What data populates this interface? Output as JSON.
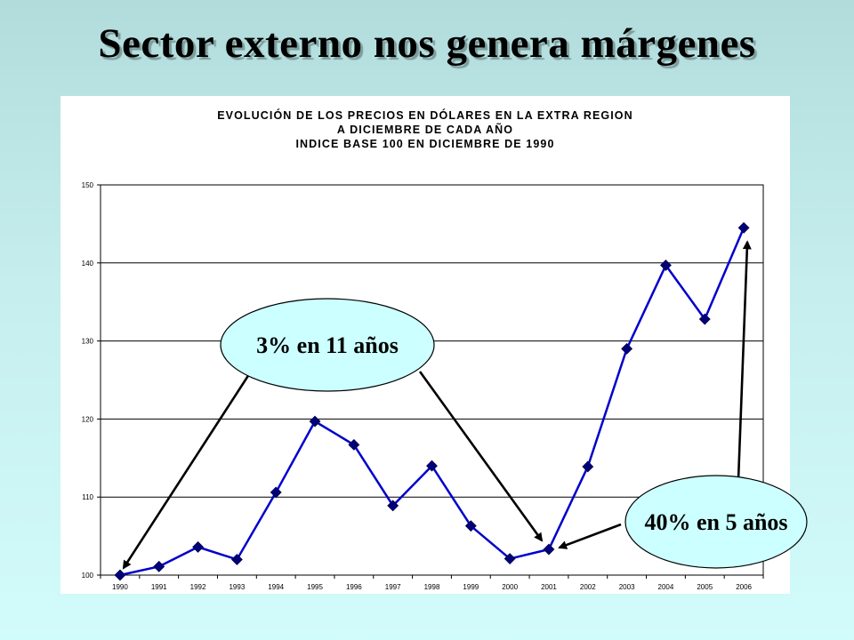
{
  "slide": {
    "title": "Sector externo nos genera márgenes"
  },
  "chart_data": {
    "type": "line",
    "title_lines": [
      "EVOLUCIÓN DE LOS PRECIOS EN DÓLARES EN LA EXTRA REGION",
      "A DICIEMBRE DE CADA AÑO",
      "INDICE BASE 100 EN DICIEMBRE DE 1990"
    ],
    "categories": [
      "1990",
      "1991",
      "1992",
      "1993",
      "1994",
      "1995",
      "1996",
      "1997",
      "1998",
      "1999",
      "2000",
      "2001",
      "2002",
      "2003",
      "2004",
      "2005",
      "2006"
    ],
    "series": [
      {
        "values": [
          100,
          101.1,
          103.6,
          102,
          110.6,
          119.7,
          116.7,
          108.9,
          114,
          106.3,
          102.1,
          103.3,
          113.9,
          129,
          139.7,
          132.8,
          144.5
        ]
      }
    ],
    "ylim": [
      100,
      150
    ],
    "yticks": [
      100,
      110,
      120,
      130,
      140,
      150
    ],
    "grid": true,
    "line_color": "#0000cc",
    "marker_color": "#00007a",
    "annotations": [
      {
        "text": "3% en 11 años",
        "from_year": "1990",
        "to_year": "2001",
        "fill": "#ccffff"
      },
      {
        "text": "40% en 5 años",
        "from_year": "2001",
        "to_year": "2006",
        "fill": "#ccffff"
      }
    ]
  }
}
